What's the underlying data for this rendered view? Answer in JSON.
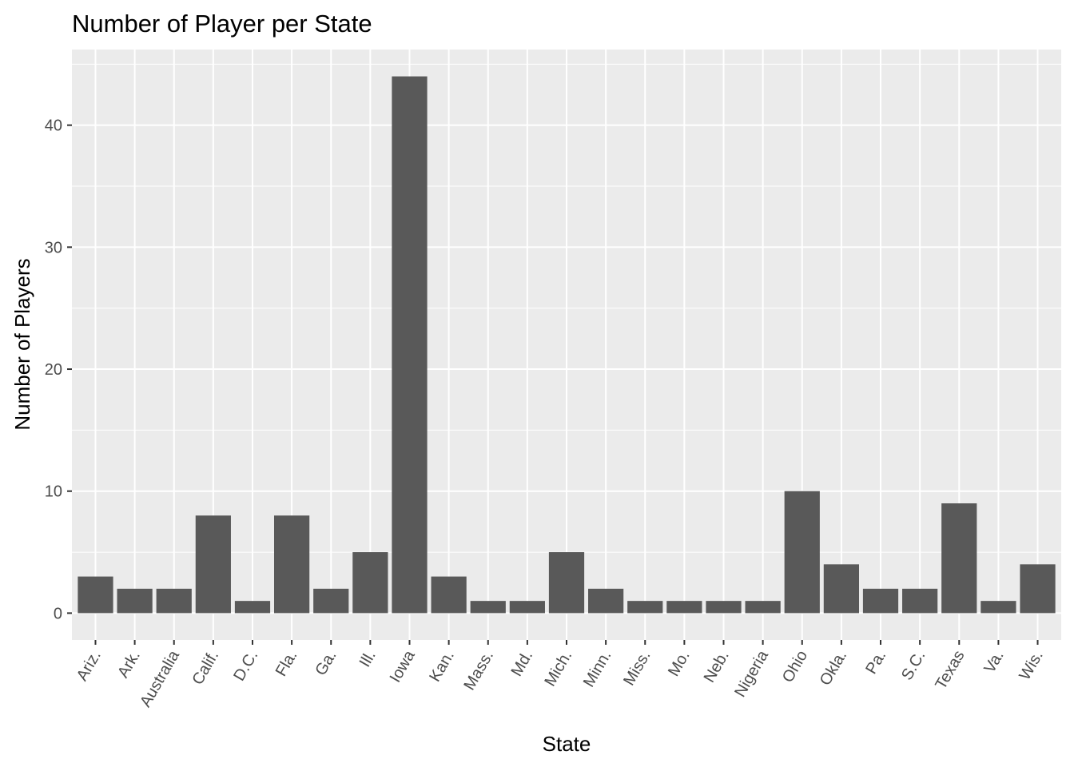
{
  "chart_data": {
    "type": "bar",
    "title": "Number of Player per State",
    "xlabel": "State",
    "ylabel": "Number of Players",
    "categories": [
      "Ariz.",
      "Ark.",
      "Australia",
      "Calif.",
      "D.C.",
      "Fla.",
      "Ga.",
      "Ill.",
      "Iowa",
      "Kan.",
      "Mass.",
      "Md.",
      "Mich.",
      "Minn.",
      "Miss.",
      "Mo.",
      "Neb.",
      "Nigeria",
      "Ohio",
      "Okla.",
      "Pa.",
      "S.C.",
      "Texas",
      "Va.",
      "Wis."
    ],
    "values": [
      3,
      2,
      2,
      8,
      1,
      8,
      2,
      5,
      44,
      3,
      1,
      1,
      5,
      2,
      1,
      1,
      1,
      1,
      10,
      4,
      2,
      2,
      9,
      1,
      4
    ],
    "yticks": [
      0,
      10,
      20,
      30,
      40
    ],
    "ylim": [
      -2.2,
      46.2
    ],
    "grid": true,
    "colors": {
      "panel": "#ebebeb",
      "bar": "#595959",
      "grid": "#ffffff"
    }
  }
}
